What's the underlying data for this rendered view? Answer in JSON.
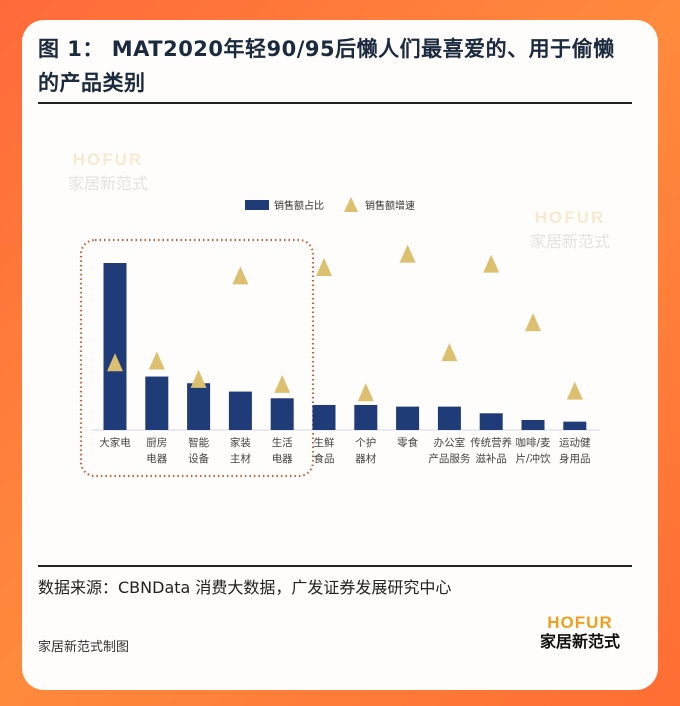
{
  "title": "图 1：  MAT2020年轻90/95后懒人们最喜爱的、用于偷懒的产品类别",
  "watermark": {
    "en": "HOFUR",
    "cn": "家居新范式"
  },
  "source": "数据来源：CBNData 消费大数据，广发证券发展研究中心",
  "credit": "家居新范式制图",
  "logo": {
    "en": "HOFUR",
    "cn": "家居新范式"
  },
  "colors": {
    "bar": "#1f3b78",
    "marker": "#dcc070",
    "highlight_box": "#c0623a"
  },
  "chart_data": {
    "type": "bar",
    "categories": [
      "大家电",
      "厨房电器",
      "智能设备",
      "家装主材",
      "生活电器",
      "生鲜食品",
      "个护器材",
      "零食",
      "办公室产品服务",
      "传统营养滋补品",
      "咖啡/麦片/冲饮",
      "运动健身用品"
    ],
    "category_lines": [
      [
        "大家电"
      ],
      [
        "厨房",
        "电器"
      ],
      [
        "智能",
        "设备"
      ],
      [
        "家装",
        "主材"
      ],
      [
        "生活",
        "电器"
      ],
      [
        "生鲜",
        "食品"
      ],
      [
        "个护",
        "器材"
      ],
      [
        "零食"
      ],
      [
        "办公室",
        "产品服务"
      ],
      [
        "传统营养",
        "滋补品"
      ],
      [
        "咖啡/麦",
        "片/冲饮"
      ],
      [
        "运动健",
        "身用品"
      ]
    ],
    "series": [
      {
        "name": "销售额占比",
        "type": "bar",
        "values": [
          100,
          32,
          28,
          23,
          19,
          15,
          15,
          14,
          14,
          10,
          6,
          5
        ]
      },
      {
        "name": "销售额增速",
        "type": "scatter",
        "marker": "triangle",
        "values": [
          40,
          41,
          30,
          92,
          27,
          97,
          22,
          105,
          46,
          99,
          64,
          23
        ]
      }
    ],
    "axes_shown": false,
    "legend": "top-center",
    "highlighted_categories": [
      "大家电",
      "厨房电器",
      "智能设备",
      "家装主材",
      "生活电器"
    ],
    "ylim": [
      0,
      110
    ]
  }
}
